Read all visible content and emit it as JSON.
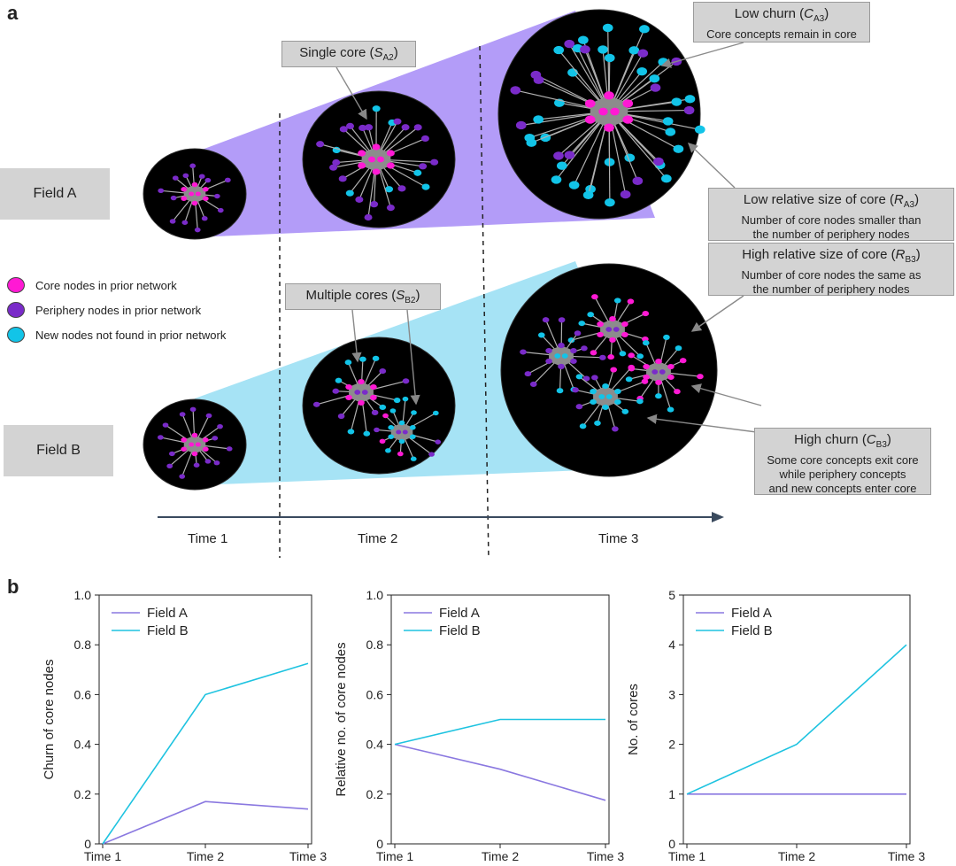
{
  "panel_a": {
    "letter": "a",
    "fields": [
      "Field A",
      "Field B"
    ],
    "times": [
      "Time 1",
      "Time 2",
      "Time 3"
    ],
    "legend": [
      {
        "label": "Core nodes in prior network",
        "color": "#ff19d4"
      },
      {
        "label": "Periphery nodes in prior network",
        "color": "#7a2bc9"
      },
      {
        "label": "New nodes not found in prior network",
        "color": "#12c4e8"
      }
    ],
    "callouts": {
      "single_core": {
        "pre": "Single core (",
        "sym": "S",
        "sub": "A2",
        "post": ")"
      },
      "multiple_cores": {
        "pre": "Multiple cores (",
        "sym": "S",
        "sub": "B2",
        "post": ")"
      },
      "low_churn": {
        "pre": "Low churn (",
        "sym": "C",
        "sub": "A3",
        "post": ")",
        "desc": [
          "Core concepts remain in core"
        ]
      },
      "low_relative": {
        "pre": "Low relative size of core (",
        "sym": "R",
        "sub": "A3",
        "post": ")",
        "desc": [
          "Number of core nodes smaller than",
          "the number of periphery nodes"
        ]
      },
      "high_relative": {
        "pre": "High relative size of core (",
        "sym": "R",
        "sub": "B3",
        "post": ")",
        "desc": [
          "Number of core nodes the same as",
          "the number of periphery nodes"
        ]
      },
      "high_churn": {
        "pre": "High churn (",
        "sym": "C",
        "sub": "B3",
        "post": ")",
        "desc": [
          "Some core concepts exit core",
          "while periphery concepts",
          "and new concepts enter core"
        ]
      }
    },
    "colors": {
      "field_a_fill": "#b39cf8",
      "field_b_fill": "#a6e3f5",
      "circle": "#000000"
    }
  },
  "panel_b": {
    "letter": "b",
    "legend": [
      "Field A",
      "Field B"
    ],
    "colors": {
      "field_a": "#8a78e0",
      "field_b": "#1ec3e0"
    }
  },
  "chart_data": [
    {
      "type": "line",
      "categories": [
        "Time 1",
        "Time 2",
        "Time 3"
      ],
      "series": [
        {
          "name": "Field A",
          "values": [
            0,
            0.17,
            0.14
          ]
        },
        {
          "name": "Field B",
          "values": [
            0,
            0.6,
            0.725
          ]
        }
      ],
      "ylabel": "Churn of core nodes",
      "ylim": [
        0,
        1
      ],
      "yticks": [
        "0",
        "0.2",
        "0.4",
        "0.6",
        "0.8",
        "1.0"
      ],
      "legend": "top-left"
    },
    {
      "type": "line",
      "categories": [
        "Time 1",
        "Time 2",
        "Time 3"
      ],
      "series": [
        {
          "name": "Field A",
          "values": [
            0.4,
            0.3,
            0.175
          ]
        },
        {
          "name": "Field B",
          "values": [
            0.4,
            0.5,
            0.5
          ]
        }
      ],
      "ylabel": "Relative no. of core nodes",
      "ylim": [
        0,
        1
      ],
      "yticks": [
        "0",
        "0.2",
        "0.4",
        "0.6",
        "0.8",
        "1.0"
      ],
      "legend": "top-left"
    },
    {
      "type": "line",
      "categories": [
        "Time 1",
        "Time 2",
        "Time 3"
      ],
      "series": [
        {
          "name": "Field A",
          "values": [
            1,
            1,
            1
          ]
        },
        {
          "name": "Field B",
          "values": [
            1,
            2,
            4
          ]
        }
      ],
      "ylabel": "No. of cores",
      "ylim": [
        0,
        5
      ],
      "yticks": [
        "0",
        "1",
        "2",
        "3",
        "4",
        "5"
      ],
      "legend": "top-left"
    }
  ]
}
